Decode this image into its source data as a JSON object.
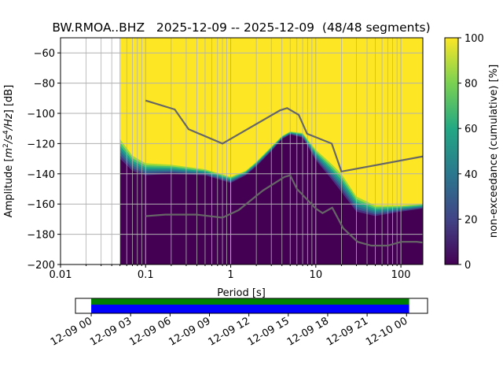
{
  "chart_data": {
    "type": "heatmap",
    "title": "BW.RMOA..BHZ   2025-12-09 -- 2025-12-09  (48/48 segments)",
    "xlabel": "Period [s]",
    "ylabel": "Amplitude [m²/s⁴/Hz] [dB]",
    "ylabel_parts": {
      "pre": "Amplitude [",
      "m": "m",
      "sup1": "2",
      "s": "/s",
      "sup2": "4",
      "hz": "/Hz",
      "post": "] [dB]"
    },
    "xscale": "log",
    "xlim": [
      0.01,
      181
    ],
    "ylim": [
      -200,
      -50
    ],
    "x_ticks": [
      0.01,
      0.1,
      1,
      10,
      100
    ],
    "x_tick_labels": [
      "0.01",
      "0.1",
      "1",
      "10",
      "100"
    ],
    "y_ticks": [
      -200,
      -180,
      -160,
      -140,
      -120,
      -100,
      -80,
      -60
    ],
    "y_tick_labels": [
      "−200",
      "−180",
      "−160",
      "−140",
      "−120",
      "−100",
      "−80",
      "−60"
    ],
    "grid": true,
    "data_start_period": 0.05,
    "density_lower_boundary": [
      [
        0.05,
        -130
      ],
      [
        0.07,
        -138
      ],
      [
        0.1,
        -141
      ],
      [
        0.2,
        -140
      ],
      [
        0.5,
        -141
      ],
      [
        1,
        -146
      ],
      [
        1.5,
        -141
      ],
      [
        2,
        -135
      ],
      [
        3,
        -125
      ],
      [
        4,
        -117
      ],
      [
        5,
        -114
      ],
      [
        7,
        -116
      ],
      [
        10,
        -131
      ],
      [
        15,
        -143
      ],
      [
        20,
        -152
      ],
      [
        30,
        -165
      ],
      [
        50,
        -168
      ],
      [
        100,
        -165
      ],
      [
        181,
        -163
      ]
    ],
    "density_upper_boundary": [
      [
        0.05,
        -117
      ],
      [
        0.07,
        -128
      ],
      [
        0.1,
        -133
      ],
      [
        0.2,
        -134
      ],
      [
        0.5,
        -137
      ],
      [
        1,
        -142
      ],
      [
        1.5,
        -138
      ],
      [
        2,
        -132
      ],
      [
        3,
        -122
      ],
      [
        4,
        -115
      ],
      [
        5,
        -112
      ],
      [
        7,
        -113
      ],
      [
        10,
        -124
      ],
      [
        15,
        -133
      ],
      [
        20,
        -140
      ],
      [
        30,
        -155
      ],
      [
        50,
        -161
      ],
      [
        100,
        -161
      ],
      [
        181,
        -160
      ]
    ],
    "noise_models": [
      {
        "name": "NHNM",
        "color": "#666666",
        "points": [
          [
            0.1,
            -91.5
          ],
          [
            0.22,
            -97.4
          ],
          [
            0.32,
            -110.5
          ],
          [
            0.8,
            -120
          ],
          [
            3.8,
            -98
          ],
          [
            4.6,
            -96.5
          ],
          [
            6.3,
            -101
          ],
          [
            7.9,
            -113.5
          ],
          [
            15.4,
            -120
          ],
          [
            20,
            -138.5
          ],
          [
            181,
            -128.5
          ]
        ]
      },
      {
        "name": "NLNM",
        "color": "#666666",
        "points": [
          [
            0.1,
            -168
          ],
          [
            0.17,
            -167
          ],
          [
            0.4,
            -167
          ],
          [
            0.8,
            -169
          ],
          [
            1.24,
            -164
          ],
          [
            2.4,
            -151
          ],
          [
            4.3,
            -142
          ],
          [
            5,
            -141
          ],
          [
            6,
            -150
          ],
          [
            10,
            -163
          ],
          [
            12,
            -166
          ],
          [
            15.6,
            -162.4
          ],
          [
            21,
            -176
          ],
          [
            31,
            -185
          ],
          [
            45,
            -187.5
          ],
          [
            70,
            -187.5
          ],
          [
            101,
            -185
          ],
          [
            154,
            -185
          ],
          [
            181,
            -185.5
          ]
        ]
      }
    ],
    "colorbar": {
      "label": "non-exceedance (cumulative) [%]",
      "range": [
        0,
        100
      ],
      "ticks": [
        0,
        20,
        40,
        60,
        80,
        100
      ],
      "tick_labels": [
        "0",
        "20",
        "40",
        "60",
        "80",
        "100"
      ],
      "colormap": [
        "#440154",
        "#414487",
        "#2a788e",
        "#22a884",
        "#7ad151",
        "#fde725"
      ]
    },
    "timeline": {
      "tick_labels": [
        "12-09 00",
        "12-09 03",
        "12-09 06",
        "12-09 09",
        "12-09 12",
        "12-09 15",
        "12-09 18",
        "12-09 21",
        "12-10 00"
      ],
      "coverage_start_hours": 0,
      "coverage_end_hours": 24.2,
      "range_hours": [
        -1.2,
        25.6
      ],
      "bar_colors": {
        "data": "#008000",
        "used": "#0000ff"
      }
    }
  }
}
